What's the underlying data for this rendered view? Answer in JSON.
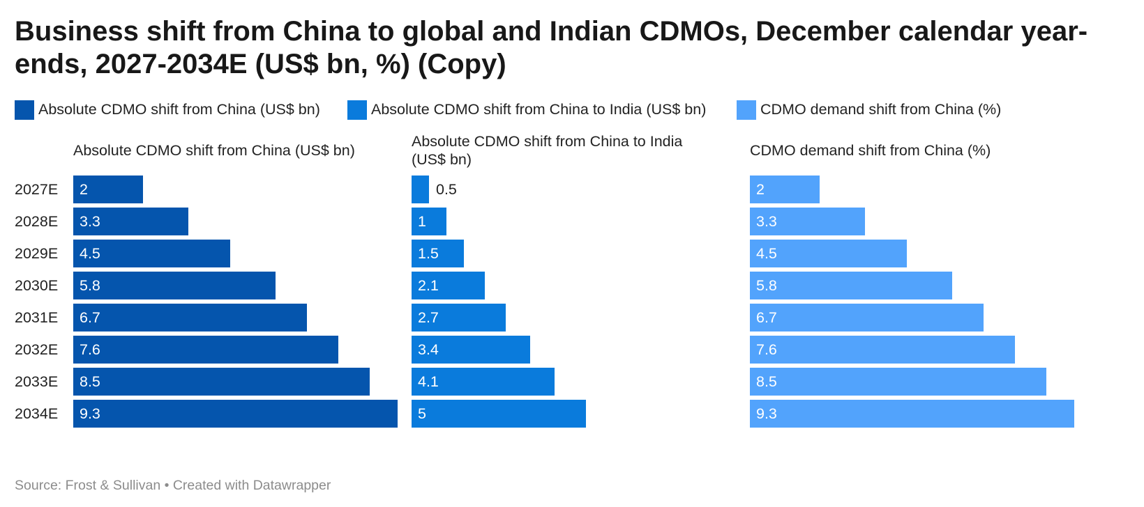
{
  "title": "Business shift from China to global and Indian CDMOs, December calendar year-ends, 2027-2034E (US$ bn, %) (Copy)",
  "source": "Source: Frost & Sullivan • Created with Datawrapper",
  "colors": {
    "absolute_china": "#0555ad",
    "absolute_india": "#0a7bdc",
    "demand_pct": "#52a3fc",
    "label_inside": "#ffffff",
    "label_outside": "#222222"
  },
  "chart_data": {
    "type": "bar",
    "orientation": "horizontal",
    "categories": [
      "2027E",
      "2028E",
      "2029E",
      "2030E",
      "2031E",
      "2032E",
      "2033E",
      "2034E"
    ],
    "legend": [
      "Absolute CDMO shift from China (US$ bn)",
      "Absolute CDMO shift from China to India (US$ bn)",
      "CDMO demand shift from China (%)"
    ],
    "legend_position": "top-left",
    "grid": false,
    "series": [
      {
        "name": "Absolute CDMO shift from China (US$ bn)",
        "values": [
          2,
          3.3,
          4.5,
          5.8,
          6.7,
          7.6,
          8.5,
          9.3
        ],
        "xlim": [
          0,
          9.3
        ]
      },
      {
        "name": "Absolute CDMO shift from China to India (US$ bn)",
        "values": [
          0.5,
          1,
          1.5,
          2.1,
          2.7,
          3.4,
          4.1,
          5
        ],
        "xlim": [
          0,
          9.3
        ]
      },
      {
        "name": "CDMO demand shift from China (%)",
        "values": [
          2,
          3.3,
          4.5,
          5.8,
          6.7,
          7.6,
          8.5,
          9.3
        ],
        "xlim": [
          0,
          9.3
        ]
      }
    ]
  }
}
